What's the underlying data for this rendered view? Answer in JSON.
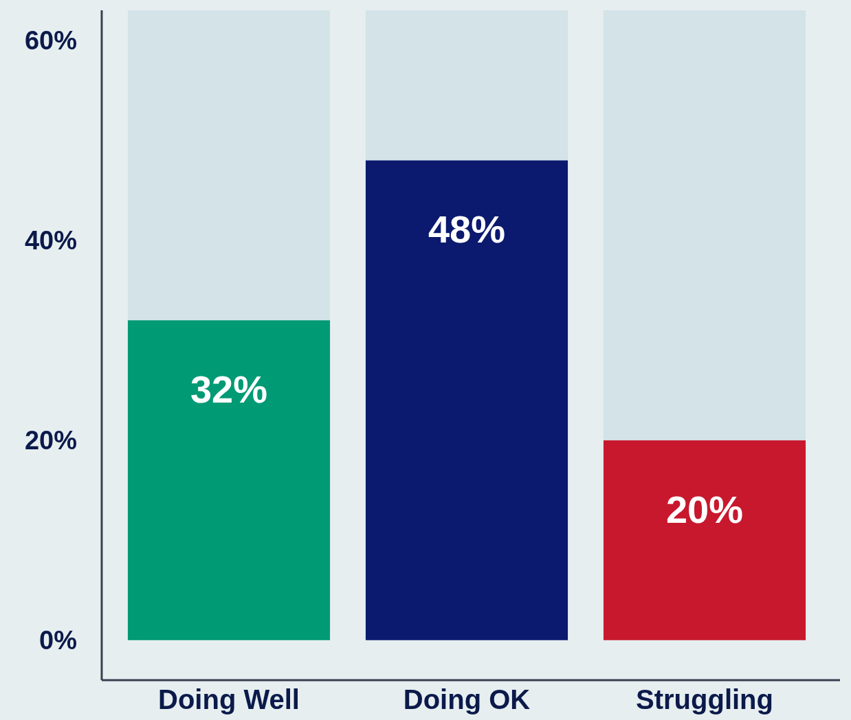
{
  "chart_data": {
    "type": "bar",
    "categories": [
      "Doing Well",
      "Doing OK",
      "Struggling"
    ],
    "series": [
      {
        "colors": [
          "#009a74",
          "#0b1a6e",
          "#c8182d"
        ],
        "values": [
          32,
          48,
          20
        ],
        "value_labels": [
          "32%",
          "48%",
          "20%"
        ]
      },
      {
        "color": "#d3e3e7",
        "values": [
          31,
          15,
          43
        ]
      }
    ],
    "stacked": true,
    "ylim": [
      -4,
      63
    ],
    "yticks": [
      {
        "value": 0,
        "label": "0%"
      },
      {
        "value": 20,
        "label": "20%"
      },
      {
        "value": 40,
        "label": "40%"
      },
      {
        "value": 60,
        "label": "60%"
      }
    ],
    "grid": false
  }
}
